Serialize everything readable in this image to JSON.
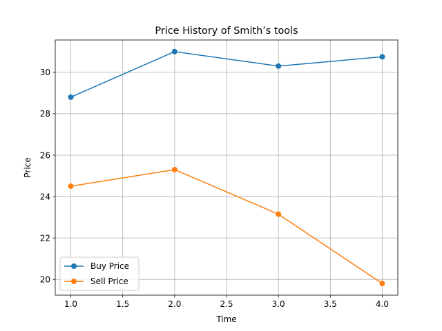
{
  "chart_data": {
    "type": "line",
    "title": "Price History of Smith’s tools",
    "xlabel": "Time",
    "ylabel": "Price",
    "x": [
      1.0,
      2.0,
      3.0,
      4.0
    ],
    "xlim": [
      0.85,
      4.15
    ],
    "ylim": [
      19.24,
      31.56
    ],
    "xticks": [
      "1.0",
      "1.5",
      "2.0",
      "2.5",
      "3.0",
      "3.5",
      "4.0"
    ],
    "yticks": [
      "20",
      "22",
      "24",
      "26",
      "28",
      "30"
    ],
    "grid": true,
    "legend_position": "lower-left",
    "series": [
      {
        "name": "Buy Price",
        "color": "#1f77b4",
        "values": [
          28.8,
          31.0,
          30.3,
          30.75
        ]
      },
      {
        "name": "Sell Price",
        "color": "#ff7f0e",
        "values": [
          24.5,
          25.3,
          23.15,
          19.8
        ]
      }
    ]
  }
}
